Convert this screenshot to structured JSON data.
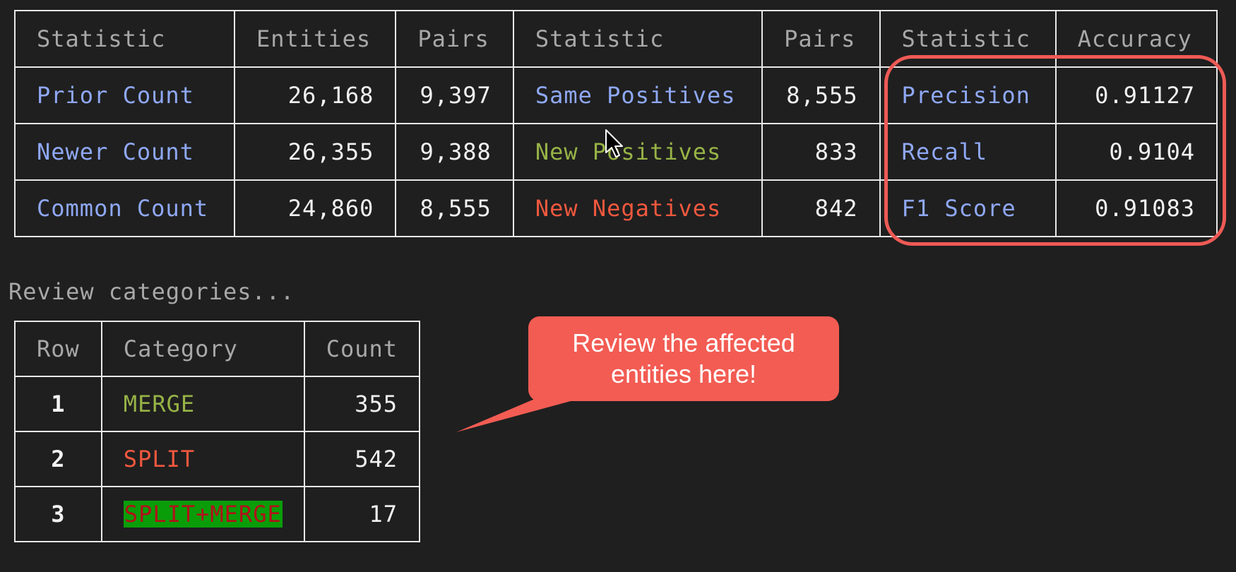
{
  "stats_table": {
    "headers": [
      "Statistic",
      "Entities",
      "Pairs",
      "Statistic",
      "Pairs",
      "Statistic",
      "Accuracy"
    ],
    "rows": [
      [
        "Prior Count",
        "26,168",
        "9,397",
        "Same Positives",
        "8,555",
        "Precision",
        "0.91127"
      ],
      [
        "Newer Count",
        "26,355",
        "9,388",
        "New Positives",
        "833",
        "Recall",
        "0.9104"
      ],
      [
        "Common Count",
        "24,860",
        "8,555",
        "New Negatives",
        "842",
        "F1 Score",
        "0.91083"
      ]
    ]
  },
  "review_label": "Review categories...",
  "categories_table": {
    "headers": [
      "Row",
      "Category",
      "Count"
    ],
    "rows": [
      [
        "1",
        "MERGE",
        "355"
      ],
      [
        "2",
        "SPLIT",
        "542"
      ],
      [
        "3",
        "SPLIT+MERGE",
        "17"
      ]
    ]
  },
  "callout": {
    "text": "Review the affected\nentities here!"
  },
  "colors": {
    "background": "#1f1f1f",
    "label_blue": "#8fa8f5",
    "positive_green": "#97b346",
    "negative_red": "#f0583e",
    "annotation_red": "#f25c53",
    "highlight_bg_green": "#0a9d0a"
  },
  "icons": {
    "cursor": "mouse-pointer-icon"
  }
}
